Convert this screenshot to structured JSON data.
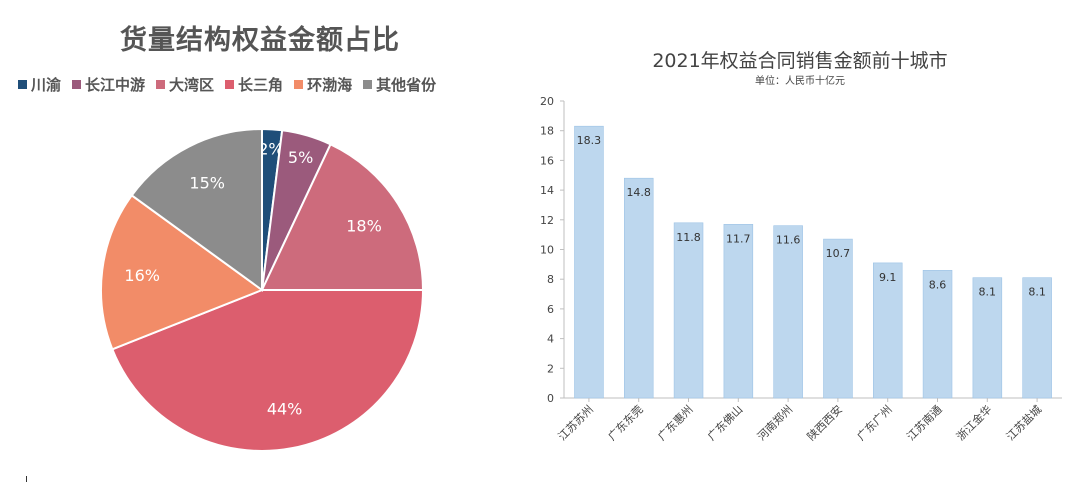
{
  "pie_chart_title": "货量结构权益金额占比",
  "bar_chart_title": "2021年权益合同销售金额前十城市",
  "bar_chart_subtitle": "单位：人民币十亿元",
  "chart_data": [
    {
      "type": "pie",
      "title": "货量结构权益金额占比",
      "legend_position": "top",
      "categories": [
        "川渝",
        "长江中游",
        "大湾区",
        "长三角",
        "环渤海",
        "其他省份"
      ],
      "values": [
        2,
        5,
        18,
        44,
        16,
        15
      ],
      "value_labels": [
        "2%",
        "5%",
        "18%",
        "44%",
        "16%",
        "15%"
      ],
      "colors": [
        "#1f4e79",
        "#9b5a7c",
        "#cd6b7c",
        "#dc5e6e",
        "#f28c68",
        "#8c8c8c"
      ]
    },
    {
      "type": "bar",
      "title": "2021年权益合同销售金额前十城市",
      "subtitle": "单位：人民币十亿元",
      "categories": [
        "江苏苏州",
        "广东东莞",
        "广东惠州",
        "广东佛山",
        "河南郑州",
        "陕西西安",
        "广东广州",
        "江苏南通",
        "浙江金华",
        "江苏盐城"
      ],
      "values": [
        18.3,
        14.8,
        11.8,
        11.7,
        11.6,
        10.7,
        9.1,
        8.6,
        8.1,
        8.1
      ],
      "value_labels": [
        "18.3",
        "14.8",
        "11.8",
        "11.7",
        "11.6",
        "10.7",
        "9.1",
        "8.6",
        "8.1",
        "8.1"
      ],
      "ylim": [
        0,
        20
      ],
      "yticks": [
        0,
        2,
        4,
        6,
        8,
        10,
        12,
        14,
        16,
        18,
        20
      ],
      "ytick_labels": [
        "0",
        "2",
        "4",
        "6",
        "8",
        "10",
        "12",
        "14",
        "16",
        "18",
        "20"
      ],
      "grid": false,
      "bar_color": "#bdd7ee",
      "bar_edge_color": "#9dc3e6"
    }
  ]
}
